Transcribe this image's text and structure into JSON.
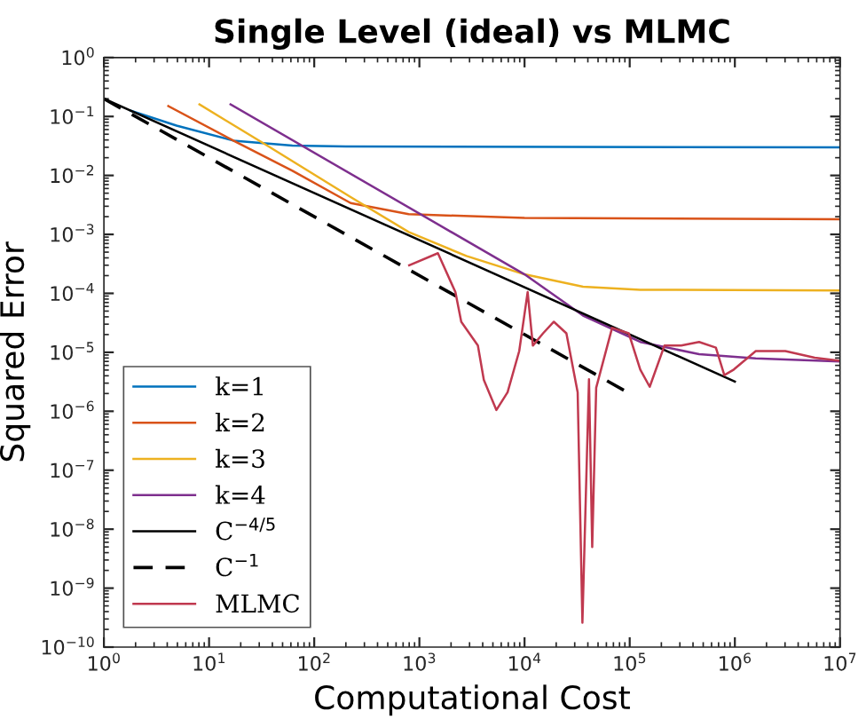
{
  "chart_data": {
    "type": "line",
    "title": "Single Level (ideal) vs MLMC",
    "xlabel": "Computational Cost",
    "ylabel": "Squared Error",
    "log": "xy",
    "grid": false,
    "legend": "bottom left",
    "marker": "none",
    "xlim": [
      1,
      10000000
    ],
    "ylim": [
      1e-10,
      1
    ],
    "xticks": [
      {
        "value": 1,
        "label": "10$^{0}$"
      },
      {
        "value": 10,
        "label": "10$^{1}$"
      },
      {
        "value": 100,
        "label": "10$^{2}$"
      },
      {
        "value": 1000,
        "label": "10$^{3}$"
      },
      {
        "value": 10000,
        "label": "10$^{4}$"
      },
      {
        "value": 100000,
        "label": "10$^{5}$"
      },
      {
        "value": 1000000,
        "label": "10$^{6}$"
      },
      {
        "value": 10000000,
        "label": "10$^{7}$"
      }
    ],
    "yticks": [
      {
        "value": 1e-10,
        "label": "10$^{−10}$"
      },
      {
        "value": 1e-09,
        "label": "10$^{−9}$"
      },
      {
        "value": 1e-08,
        "label": "10$^{−8}$"
      },
      {
        "value": 1e-07,
        "label": "10$^{−7}$"
      },
      {
        "value": 1e-06,
        "label": "10$^{−6}$"
      },
      {
        "value": 1e-05,
        "label": "10$^{−5}$"
      },
      {
        "value": 0.0001,
        "label": "10$^{−4}$"
      },
      {
        "value": 0.001,
        "label": "10$^{−3}$"
      },
      {
        "value": 0.01,
        "label": "10$^{−2}$"
      },
      {
        "value": 0.1,
        "label": "10$^{−1}$"
      },
      {
        "value": 1,
        "label": "10$^{0}$"
      }
    ],
    "series": [
      {
        "name": "k=1",
        "color": "#0072bd",
        "line_style": "solid",
        "x": [
          1.8,
          4.9,
          17,
          62,
          200,
          10000000
        ],
        "values": [
          0.125,
          0.07,
          0.039,
          0.032,
          0.031,
          0.03
        ]
      },
      {
        "name": "k=2",
        "color": "#d95319",
        "line_style": "solid",
        "x": [
          4.1,
          17,
          62,
          222,
          790,
          10000,
          10000000
        ],
        "values": [
          0.15,
          0.039,
          0.012,
          0.0034,
          0.0022,
          0.0019,
          0.0018
        ]
      },
      {
        "name": "k=3",
        "color": "#edb120",
        "line_style": "solid",
        "x": [
          8.1,
          33,
          222,
          790,
          2800,
          10000,
          36000,
          126000,
          10000000
        ],
        "values": [
          0.16,
          0.035,
          0.0043,
          0.0011,
          0.00043,
          0.00021,
          0.00013,
          0.000115,
          0.000112
        ]
      },
      {
        "name": "k=4",
        "color": "#7e2f8e",
        "line_style": "solid",
        "x": [
          16,
          10000,
          36000,
          126000,
          457000,
          1580000,
          10000000
        ],
        "values": [
          0.16,
          0.00021,
          4.2e-05,
          1.5e-05,
          9.3e-06,
          7.9e-06,
          7e-06
        ]
      },
      {
        "name": "C$^{−4/5}$",
        "color": "#000000",
        "line_style": "solid",
        "x": [
          1,
          1000000
        ],
        "values": [
          0.2,
          3.2e-06
        ]
      },
      {
        "name": "C$^{−1}$",
        "color": "#000000",
        "line_style": "dashed",
        "x": [
          1,
          100000
        ],
        "values": [
          0.2,
          2e-06
        ]
      },
      {
        "name": "MLMC",
        "color": "#c0394f",
        "line_style": "solid",
        "x": [
          800,
          1500,
          2200,
          2500,
          3600,
          4100,
          5400,
          6900,
          8900,
          10700,
          12000,
          15000,
          19000,
          25000,
          32000,
          35500,
          41000,
          44000,
          48000,
          68000,
          98000,
          126000,
          155000,
          214000,
          309000,
          457000,
          660000,
          794000,
          977000,
          1580000,
          3020000,
          5750000,
          10000000
        ],
        "values": [
          0.0003,
          0.00048,
          0.000105,
          3.3e-05,
          1.3e-05,
          3.4e-06,
          1.05e-06,
          2.1e-06,
          1.05e-05,
          0.000105,
          1.3e-05,
          2.1e-05,
          3.3e-05,
          2.1e-05,
          2.1e-06,
          2.6e-10,
          3.5e-06,
          5e-09,
          2.5e-06,
          2.6e-05,
          2.1e-05,
          5.1e-06,
          2.6e-06,
          1.3e-05,
          1.3e-05,
          1.5e-05,
          1.2e-05,
          4.1e-06,
          5.1e-06,
          1.05e-05,
          1.05e-05,
          8.1e-06,
          7.2e-06
        ]
      }
    ]
  }
}
